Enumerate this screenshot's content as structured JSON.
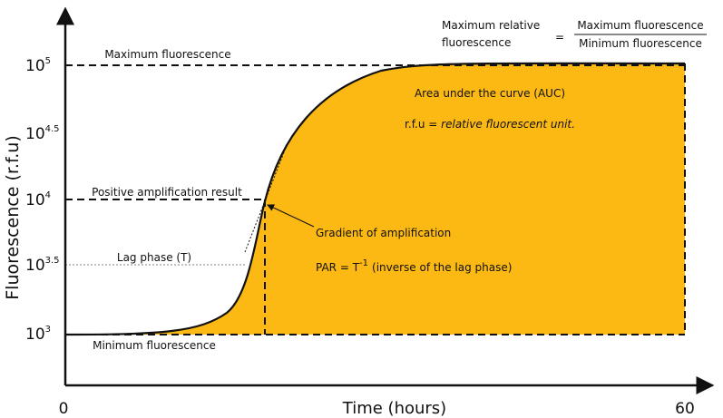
{
  "axes": {
    "y_label": "Fluorescence (r.f.u)",
    "x_label": "Time (hours)",
    "x_start": "0",
    "x_end": "60",
    "y_ticks": [
      {
        "base": "10",
        "exp": "5"
      },
      {
        "base": "10",
        "exp": "4.5"
      },
      {
        "base": "10",
        "exp": "4"
      },
      {
        "base": "10",
        "exp": "3.5"
      },
      {
        "base": "10",
        "exp": "3"
      }
    ]
  },
  "annotations": {
    "max": "Maximum fluorescence",
    "positive": "Positive amplification result",
    "lag": "Lag phase (T)",
    "min": "Minimum fluorescence",
    "gradient": "Gradient of amplification",
    "par": {
      "prefix": "PAR = T",
      "exp": "-1",
      "suffix": "(inverse of the lag phase)"
    },
    "auc": "Area under the curve (AUC)",
    "rfu": {
      "abbr": "r.f.u =",
      "meaning": "relative fluorescent unit."
    }
  },
  "formula": {
    "left_line1": "Maximum relative",
    "left_line2": "fluorescence",
    "equals": "=",
    "numerator": "Maximum fluorescence",
    "denominator": "Minimum fluorescence"
  }
}
